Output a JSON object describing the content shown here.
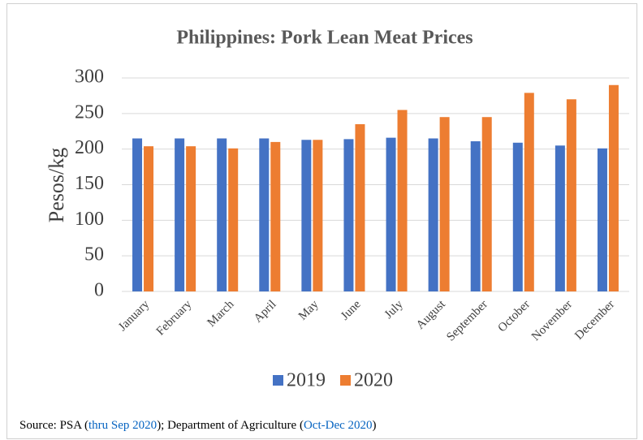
{
  "chart_data": {
    "type": "bar",
    "title": "Philippines: Pork Lean Meat Prices",
    "y_label": "Pesos/kg",
    "categories": [
      "January",
      "February",
      "March",
      "April",
      "May",
      "June",
      "July",
      "August",
      "September",
      "October",
      "November",
      "December"
    ],
    "series": [
      {
        "name": "2019",
        "color": "#4472c4",
        "values": [
          215,
          215,
          215,
          215,
          213,
          214,
          216,
          215,
          211,
          209,
          205,
          201
        ]
      },
      {
        "name": "2020",
        "color": "#ed7d31",
        "values": [
          204,
          204,
          201,
          210,
          213,
          235,
          255,
          245,
          245,
          279,
          270,
          290
        ]
      }
    ],
    "ylim": [
      0,
      300
    ],
    "yticks": [
      0,
      50,
      100,
      150,
      200,
      250,
      300
    ],
    "grid": true,
    "legend": "bottom"
  },
  "source": {
    "prefix": "Source:  PSA (",
    "link1": "thru Sep 2020",
    "middle": "); Department of Agriculture (",
    "link2": "Oct-Dec 2020",
    "suffix": ")"
  }
}
